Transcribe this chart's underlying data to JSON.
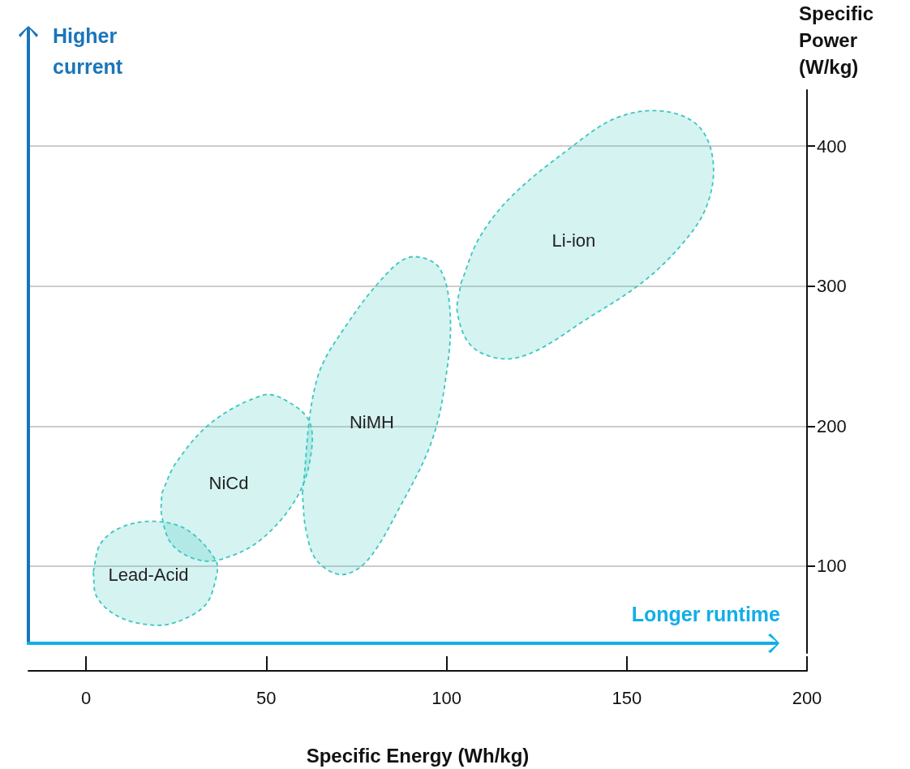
{
  "chart_data": {
    "type": "area",
    "xlabel": "Specific Energy (Wh/kg)",
    "ylabel": "Specific Power (W/kg)",
    "annotations": [
      "Higher current",
      "Longer runtime"
    ],
    "xlim": [
      -16,
      200
    ],
    "xticks": [
      0,
      50,
      100,
      150,
      200
    ],
    "ylim": [
      38,
      440
    ],
    "yticks": [
      100,
      200,
      300,
      400
    ],
    "grid": "y",
    "legend": false,
    "line_style": "dashed",
    "series": [
      {
        "name": "Lead-Acid",
        "color": "#3cc7c0",
        "x": [
          2,
          4,
          10,
          19,
          28,
          36,
          36,
          33,
          25,
          18,
          9,
          3,
          2
        ],
        "values": [
          96,
          116,
          128,
          132,
          126,
          104,
          91,
          72,
          60,
          58,
          64,
          78,
          96
        ]
      },
      {
        "name": "NiCd",
        "color": "#3cc7c0",
        "x": [
          21,
          25,
          35,
          49,
          55,
          62,
          62,
          58,
          49,
          40,
          32,
          24,
          21,
          21
        ],
        "values": [
          152,
          174,
          203,
          222,
          219,
          203,
          174,
          147,
          120,
          107,
          104,
          115,
          136,
          152
        ]
      },
      {
        "name": "NiMH",
        "color": "#3cc7c0",
        "x": [
          60,
          64,
          73,
          85,
          91,
          98,
          101,
          100,
          96,
          87,
          78,
          71,
          64,
          61,
          60
        ],
        "values": [
          152,
          233,
          275,
          313,
          321,
          313,
          281,
          238,
          190,
          142,
          104,
          94,
          104,
          126,
          152
        ]
      },
      {
        "name": "Li-ion",
        "color": "#3cc7c0",
        "x": [
          104,
          109,
          118,
          134,
          147,
          160,
          170,
          174,
          172,
          165,
          154,
          138,
          125,
          116,
          107,
          103,
          104
        ],
        "values": [
          302,
          334,
          364,
          398,
          420,
          425,
          414,
          388,
          356,
          329,
          302,
          275,
          254,
          248,
          257,
          281,
          302
        ]
      }
    ]
  }
}
